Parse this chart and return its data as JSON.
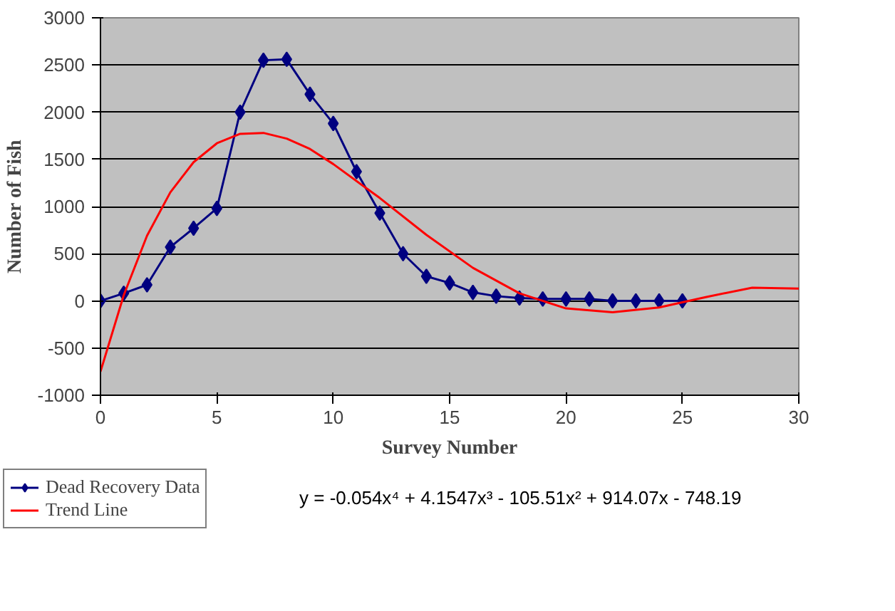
{
  "chart_data": {
    "type": "line",
    "xlabel": "Survey Number",
    "ylabel": "Number of Fish",
    "xlim": [
      0,
      30
    ],
    "xticks": [
      0,
      5,
      10,
      15,
      20,
      25,
      30
    ],
    "ylim": [
      -1000,
      3000
    ],
    "yticks": [
      -1000,
      -500,
      0,
      500,
      1000,
      1500,
      2000,
      2500,
      3000
    ],
    "grid": "y",
    "legend": "bottom left",
    "series": [
      {
        "name": "Dead Recovery Data",
        "color": "#000080",
        "marker": "diamond",
        "x": [
          0,
          1,
          2,
          3,
          4,
          5,
          6,
          7,
          8,
          9,
          10,
          11,
          12,
          13,
          14,
          15,
          16,
          17,
          18,
          19,
          20,
          21,
          22,
          23,
          24,
          25
        ],
        "values": [
          0,
          80,
          170,
          570,
          770,
          980,
          2000,
          2550,
          2560,
          2190,
          1880,
          1370,
          930,
          500,
          260,
          190,
          90,
          50,
          30,
          20,
          20,
          20,
          0,
          0,
          0,
          0
        ]
      },
      {
        "name": "Trend Line",
        "color": "#ff0000",
        "marker": "none",
        "x": [
          0,
          1,
          2,
          3,
          4,
          5,
          6,
          7,
          8,
          9,
          10,
          12,
          14,
          16,
          18,
          20,
          22,
          24,
          26,
          28,
          30
        ],
        "values": [
          -750,
          60,
          690,
          1150,
          1470,
          1670,
          1770,
          1780,
          1720,
          1610,
          1450,
          1090,
          700,
          350,
          80,
          -80,
          -120,
          -70,
          40,
          140,
          130
        ]
      }
    ],
    "annotations": [
      "y = -0.054x⁴ + 4.1547x³ - 105.51x² + 914.07x - 748.19"
    ]
  }
}
